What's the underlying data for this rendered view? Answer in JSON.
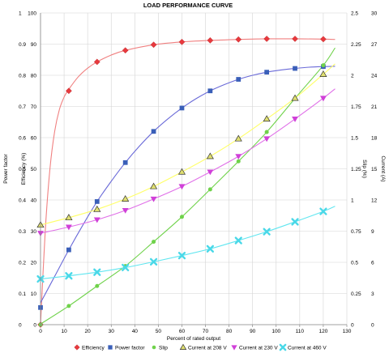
{
  "chart_data": {
    "type": "line",
    "title": "LOAD PERFORMANCE CURVE",
    "xlabel": "Percent of rated output",
    "x_ticks": [
      "0",
      "10",
      "20",
      "30",
      "40",
      "50",
      "60",
      "70",
      "80",
      "90",
      "100",
      "110",
      "120",
      "130"
    ],
    "xlim": [
      0,
      130
    ],
    "grid": true,
    "legend_position": "bottom",
    "axes": {
      "power_factor": {
        "label": "Power factor",
        "lim": [
          0,
          1
        ],
        "ticks": [
          "0",
          "0.1",
          "0.2",
          "0.3",
          "0.4",
          "0.5",
          "0.6",
          "0.7",
          "0.8",
          "0.9",
          "1"
        ]
      },
      "efficiency": {
        "label": "Efficiency (%)",
        "lim": [
          0,
          100
        ],
        "ticks": [
          "0",
          "10",
          "20",
          "30",
          "40",
          "50",
          "60",
          "70",
          "80",
          "90",
          "100"
        ]
      },
      "slip": {
        "label": "Slip (%)",
        "lim": [
          0,
          2.5
        ],
        "ticks": [
          "0",
          "0.25",
          "0.5",
          "0.75",
          "1",
          "1.25",
          "1.5",
          "1.75",
          "2",
          "2.25",
          "2.5"
        ]
      },
      "current": {
        "label": "Current (A)",
        "lim": [
          0,
          30
        ],
        "ticks": [
          "0",
          "3",
          "6",
          "9",
          "12",
          "15",
          "18",
          "21",
          "24",
          "27",
          "30"
        ]
      }
    },
    "series": [
      {
        "name": "Efficiency",
        "axis": "efficiency",
        "color": "#e8393e",
        "line_color": "#f08080",
        "marker": "diamond",
        "x": [
          0,
          12,
          24,
          36,
          48,
          60,
          72,
          84,
          96,
          108,
          120
        ],
        "values": [
          0,
          75,
          84.3,
          88,
          89.8,
          90.7,
          91.2,
          91.5,
          91.7,
          91.7,
          91.6
        ],
        "curve_x": [
          0,
          2,
          4,
          6,
          8,
          10,
          12,
          16,
          20,
          24,
          30,
          36,
          48,
          60,
          72,
          84,
          96,
          108,
          120,
          125
        ],
        "curve_y": [
          0,
          30,
          50,
          62,
          69,
          73,
          75.5,
          79.5,
          82.3,
          84.3,
          86.5,
          88,
          89.8,
          90.7,
          91.2,
          91.5,
          91.7,
          91.7,
          91.6,
          91.5
        ]
      },
      {
        "name": "Power factor",
        "axis": "power_factor",
        "color": "#3a5fb8",
        "line_color": "#6a6ad8",
        "marker": "square",
        "x": [
          0,
          12,
          24,
          36,
          48,
          60,
          72,
          84,
          96,
          108,
          120
        ],
        "values": [
          0.055,
          0.24,
          0.395,
          0.52,
          0.62,
          0.695,
          0.75,
          0.787,
          0.81,
          0.822,
          0.828
        ],
        "curve_x": [
          0,
          6,
          12,
          18,
          24,
          30,
          36,
          42,
          48,
          54,
          60,
          66,
          72,
          78,
          84,
          90,
          96,
          102,
          108,
          114,
          120,
          125
        ],
        "curve_y": [
          0.07,
          0.155,
          0.24,
          0.32,
          0.395,
          0.46,
          0.52,
          0.573,
          0.62,
          0.66,
          0.695,
          0.725,
          0.75,
          0.77,
          0.787,
          0.8,
          0.81,
          0.817,
          0.822,
          0.826,
          0.828,
          0.829
        ]
      },
      {
        "name": "Slip",
        "axis": "slip",
        "color": "#6fd24a",
        "line_color": "#6fd24a",
        "marker": "circle",
        "x": [
          0,
          12,
          24,
          36,
          48,
          60,
          72,
          84,
          96,
          108,
          120
        ],
        "values": [
          0,
          0.15,
          0.31,
          0.47,
          0.665,
          0.865,
          1.085,
          1.31,
          1.545,
          1.815,
          2.08
        ],
        "curve_x": [
          0,
          12,
          24,
          36,
          48,
          60,
          72,
          84,
          96,
          108,
          120,
          125
        ],
        "curve_y": [
          0.005,
          0.15,
          0.31,
          0.47,
          0.665,
          0.865,
          1.085,
          1.31,
          1.545,
          1.815,
          2.08,
          2.22
        ]
      },
      {
        "name": "Current at 208 V",
        "axis": "current",
        "color": "#e0e070",
        "line_color": "#ffff66",
        "marker": "triangle-up",
        "x": [
          0,
          12,
          24,
          36,
          48,
          60,
          72,
          84,
          96,
          108,
          120
        ],
        "values": [
          9.6,
          10.3,
          11.1,
          12.1,
          13.3,
          14.7,
          16.2,
          17.9,
          19.8,
          21.8,
          24.1
        ],
        "curve_x": [
          0,
          12,
          24,
          36,
          48,
          60,
          72,
          84,
          96,
          108,
          120,
          125
        ],
        "curve_y": [
          9.6,
          10.3,
          11.1,
          12.1,
          13.3,
          14.7,
          16.2,
          17.9,
          19.8,
          21.8,
          24.1,
          25.1
        ]
      },
      {
        "name": "Current at 230 V",
        "axis": "current",
        "color": "#d040d8",
        "line_color": "#e070e8",
        "marker": "triangle-down",
        "x": [
          0,
          12,
          24,
          36,
          48,
          60,
          72,
          84,
          96,
          108,
          120
        ],
        "values": [
          8.8,
          9.4,
          10.1,
          11,
          12.1,
          13.3,
          14.7,
          16.2,
          17.9,
          19.8,
          21.8
        ],
        "curve_x": [
          0,
          12,
          24,
          36,
          48,
          60,
          72,
          84,
          96,
          108,
          120,
          125
        ],
        "curve_y": [
          8.8,
          9.4,
          10.1,
          11,
          12.1,
          13.3,
          14.7,
          16.2,
          17.9,
          19.8,
          21.8,
          22.7
        ]
      },
      {
        "name": "Current at 460 V",
        "axis": "current",
        "color": "#4ad8e8",
        "line_color": "#60e6f0",
        "marker": "x",
        "x": [
          0,
          12,
          24,
          36,
          48,
          60,
          72,
          84,
          96,
          108,
          120
        ],
        "values": [
          4.4,
          4.7,
          5.05,
          5.5,
          6.05,
          6.65,
          7.3,
          8.1,
          8.95,
          9.9,
          10.9
        ],
        "curve_x": [
          0,
          12,
          24,
          36,
          48,
          60,
          72,
          84,
          96,
          108,
          120,
          125
        ],
        "curve_y": [
          4.4,
          4.7,
          5.05,
          5.5,
          6.05,
          6.65,
          7.3,
          8.1,
          8.95,
          9.9,
          10.9,
          11.4
        ]
      }
    ]
  }
}
